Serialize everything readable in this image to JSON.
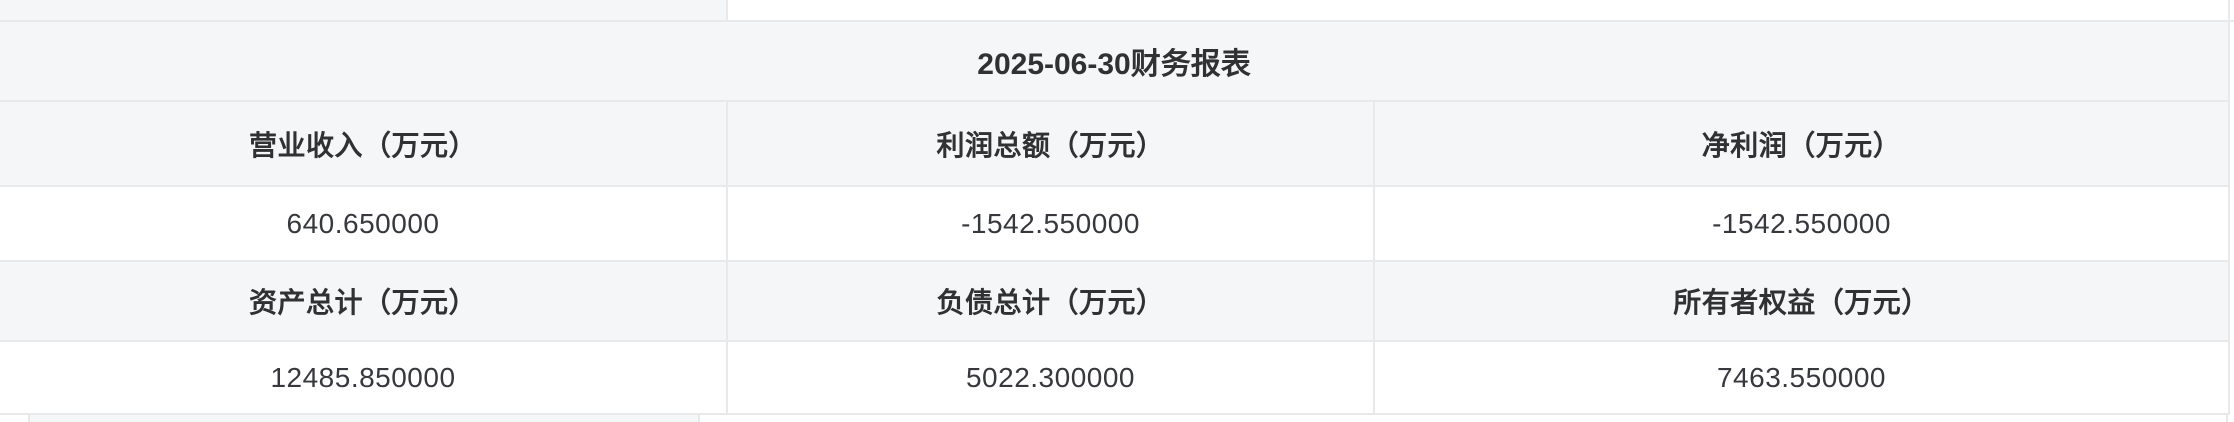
{
  "colors": {
    "header_row_bg": "#f5f6f7",
    "value_row_bg": "#ffffff",
    "border": "#e8e9eb",
    "text": "#303133"
  },
  "report": {
    "title": "2025-06-30财务报表",
    "header_row_1": [
      "营业收入（万元）",
      "利润总额（万元）",
      "净利润（万元）"
    ],
    "value_row_1": [
      "640.650000",
      "-1542.550000",
      "-1542.550000"
    ],
    "header_row_2": [
      "资产总计（万元）",
      "负债总计（万元）",
      "所有者权益（万元）"
    ],
    "value_row_2": [
      "12485.850000",
      "5022.300000",
      "7463.550000"
    ]
  },
  "chart_data": {
    "type": "table",
    "title": "2025-06-30财务报表",
    "metrics": [
      {
        "label": "营业收入（万元）",
        "value": 640.65
      },
      {
        "label": "利润总额（万元）",
        "value": -1542.55
      },
      {
        "label": "净利润（万元）",
        "value": -1542.55
      },
      {
        "label": "资产总计（万元）",
        "value": 12485.85
      },
      {
        "label": "负债总计（万元）",
        "value": 5022.3
      },
      {
        "label": "所有者权益（万元）",
        "value": 7463.55
      }
    ]
  }
}
